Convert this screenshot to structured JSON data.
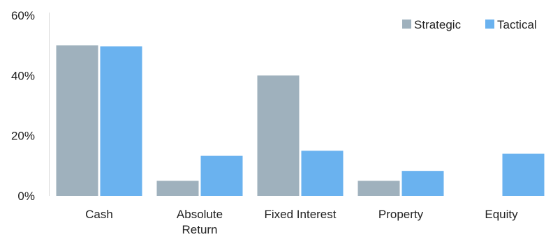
{
  "chart_data": {
    "type": "bar",
    "categories": [
      [
        "Cash"
      ],
      [
        "Absolute",
        "Return"
      ],
      [
        "Fixed Interest"
      ],
      [
        "Property"
      ],
      [
        "Equity"
      ]
    ],
    "series": [
      {
        "name": "Strategic",
        "color": "#9fb1bd",
        "values": [
          50,
          5,
          40,
          5,
          null
        ]
      },
      {
        "name": "Tactical",
        "color": "#6ab2ef",
        "values": [
          49.7,
          13.3,
          15,
          8.3,
          14
        ]
      }
    ],
    "yticks": [
      "0%",
      "20%",
      "40%",
      "60%"
    ],
    "ylim": [
      0,
      60
    ],
    "legend_position": "top-right",
    "grid": false
  }
}
